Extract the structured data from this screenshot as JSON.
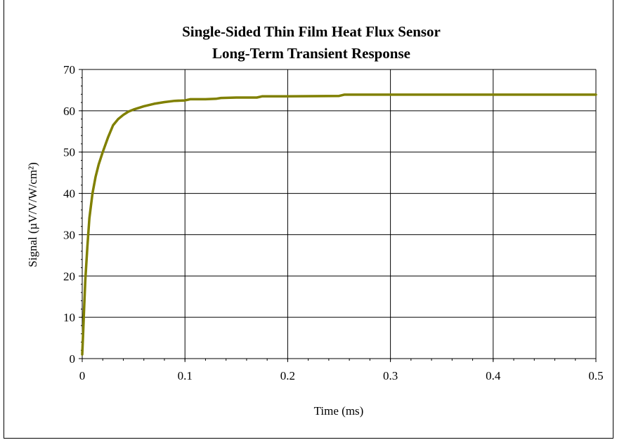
{
  "chart_data": {
    "type": "line",
    "title": "Single-Sided Thin Film Heat Flux Sensor",
    "subtitle": "Long-Term Transient Response",
    "xlabel": "Time (ms)",
    "ylabel": "Signal (µV/V/W/cm²)",
    "xlim": [
      0,
      0.5
    ],
    "ylim": [
      0,
      70
    ],
    "x_ticks": [
      "0",
      "0.1",
      "0.2",
      "0.3",
      "0.4",
      "0.5"
    ],
    "y_ticks": [
      "0",
      "10",
      "20",
      "30",
      "40",
      "50",
      "60",
      "70"
    ],
    "grid": true,
    "legend": "none",
    "series": [
      {
        "color": "#808000",
        "x": [
          0,
          0.001,
          0.002,
          0.003,
          0.005,
          0.007,
          0.01,
          0.013,
          0.016,
          0.02,
          0.025,
          0.03,
          0.035,
          0.04,
          0.045,
          0.05,
          0.06,
          0.07,
          0.08,
          0.09,
          0.1,
          0.105,
          0.11,
          0.12,
          0.13,
          0.135,
          0.15,
          0.17,
          0.175,
          0.2,
          0.25,
          0.255,
          0.3,
          0.4,
          0.5
        ],
        "y": [
          1,
          7,
          13,
          19,
          27,
          34,
          40,
          44,
          47,
          50,
          53.5,
          56.5,
          58,
          59,
          59.8,
          60.3,
          61.1,
          61.7,
          62.1,
          62.4,
          62.5,
          62.8,
          62.8,
          62.8,
          62.9,
          63.1,
          63.2,
          63.2,
          63.5,
          63.5,
          63.6,
          63.9,
          63.9,
          63.9,
          63.9
        ]
      }
    ]
  }
}
